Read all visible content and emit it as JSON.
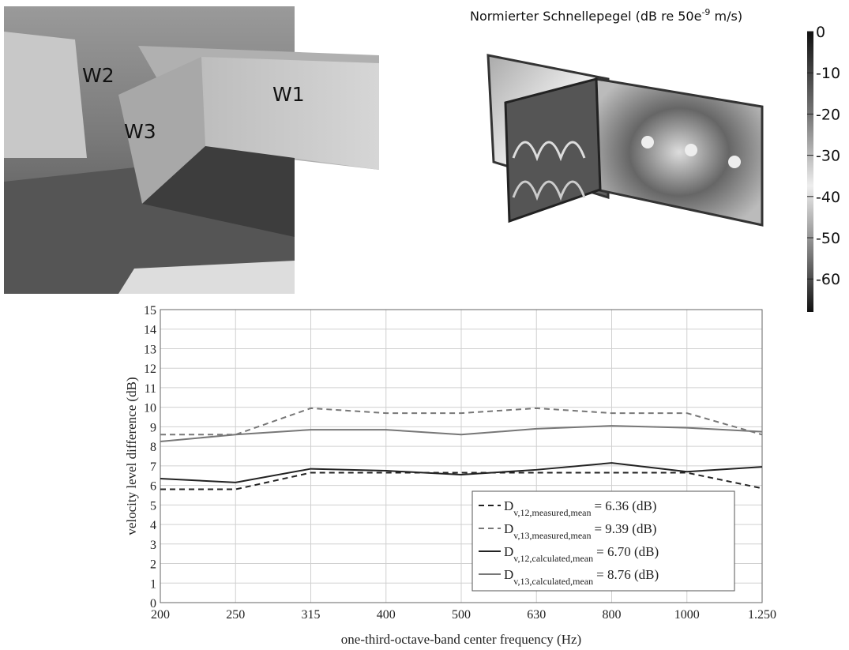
{
  "photo": {
    "labels": [
      "W1",
      "W2",
      "W3"
    ]
  },
  "simulation": {
    "title": "Normierter Schnellepegel (dB re 50e",
    "title_sup": "-9",
    "title_end": " m/s)",
    "colorbar_lim": [
      0,
      -68
    ],
    "colorbar_ticks": [
      0,
      -10,
      -20,
      -30,
      -40,
      -50,
      -60
    ]
  },
  "chart_data": {
    "type": "line",
    "x_label": "one-third-octave-band center frequency (Hz)",
    "y_label": "velocity level difference (dB)",
    "categories": [
      "200",
      "250",
      "315",
      "400",
      "500",
      "630",
      "800",
      "1000",
      "1.250"
    ],
    "ylim": [
      0,
      15
    ],
    "yticks": [
      0,
      1,
      2,
      3,
      4,
      5,
      6,
      7,
      8,
      9,
      10,
      11,
      12,
      13,
      14,
      15
    ],
    "grid": true,
    "legend": "lower right",
    "series": [
      {
        "name": "D",
        "subscript": "v,12,measured,mean",
        "label": "= 6.36 (dB)",
        "color": "#222222",
        "dashed": true,
        "values": [
          5.8,
          5.8,
          6.65,
          6.65,
          6.65,
          6.65,
          6.65,
          6.65,
          5.85
        ]
      },
      {
        "name": "D",
        "subscript": "v,13,measured,mean",
        "label": "= 9.39 (dB)",
        "color": "#777777",
        "dashed": true,
        "values": [
          8.6,
          8.6,
          9.95,
          9.7,
          9.7,
          9.95,
          9.7,
          9.7,
          8.6
        ]
      },
      {
        "name": "D",
        "subscript": "v,12,calculated,mean",
        "label": "= 6.70 (dB)",
        "color": "#222222",
        "dashed": false,
        "values": [
          6.35,
          6.15,
          6.85,
          6.75,
          6.55,
          6.8,
          7.15,
          6.7,
          6.95
        ]
      },
      {
        "name": "D",
        "subscript": "v,13,calculated,mean",
        "label": "= 8.76 (dB)",
        "color": "#777777",
        "dashed": false,
        "values": [
          8.25,
          8.6,
          8.85,
          8.85,
          8.6,
          8.9,
          9.05,
          8.95,
          8.75
        ]
      }
    ]
  }
}
